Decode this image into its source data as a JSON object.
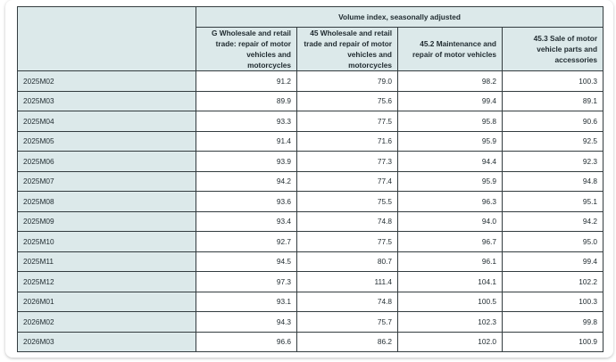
{
  "table": {
    "superheader": "Volume index, seasonally adjusted",
    "columns": [
      "G Wholesale and retail trade: repair of motor vehicles and motorcycles",
      "45 Wholesale and retail trade and repair of motor vehicles and motorcycles",
      "45.2 Maintenance and repair of motor vehicles",
      "45.3 Sale of motor vehicle parts and accessories"
    ],
    "rows": [
      {
        "period": "2025M02",
        "values": [
          "91.2",
          "79.0",
          "98.2",
          "100.3"
        ]
      },
      {
        "period": "2025M03",
        "values": [
          "89.9",
          "75.6",
          "99.4",
          "89.1"
        ]
      },
      {
        "period": "2025M04",
        "values": [
          "93.3",
          "77.5",
          "95.8",
          "90.6"
        ]
      },
      {
        "period": "2025M05",
        "values": [
          "91.4",
          "71.6",
          "95.9",
          "92.5"
        ]
      },
      {
        "period": "2025M06",
        "values": [
          "93.9",
          "77.3",
          "94.4",
          "92.3"
        ]
      },
      {
        "period": "2025M07",
        "values": [
          "94.2",
          "77.4",
          "95.9",
          "94.8"
        ]
      },
      {
        "period": "2025M08",
        "values": [
          "93.6",
          "75.5",
          "96.3",
          "95.1"
        ]
      },
      {
        "period": "2025M09",
        "values": [
          "93.4",
          "74.8",
          "94.0",
          "94.2"
        ]
      },
      {
        "period": "2025M10",
        "values": [
          "92.7",
          "77.5",
          "96.7",
          "95.0"
        ]
      },
      {
        "period": "2025M11",
        "values": [
          "94.5",
          "80.7",
          "96.1",
          "99.4"
        ]
      },
      {
        "period": "2025M12",
        "values": [
          "97.3",
          "111.4",
          "104.1",
          "102.2"
        ]
      },
      {
        "period": "2026M01",
        "values": [
          "93.1",
          "74.8",
          "100.5",
          "100.3"
        ]
      },
      {
        "period": "2026M02",
        "values": [
          "94.3",
          "75.7",
          "102.3",
          "99.8"
        ]
      },
      {
        "period": "2026M03",
        "values": [
          "96.6",
          "86.2",
          "102.0",
          "100.9"
        ]
      }
    ]
  },
  "colors": {
    "header_bg": "#dce9ea",
    "border": "#333c3f"
  }
}
